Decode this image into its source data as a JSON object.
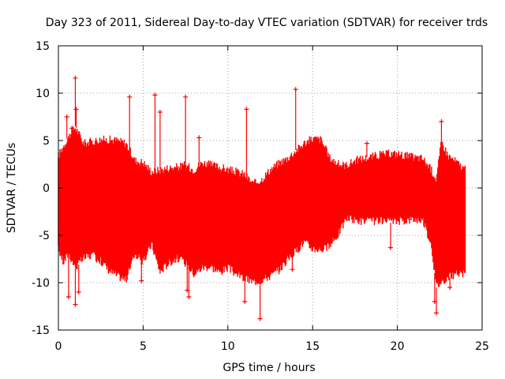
{
  "chart_data": {
    "type": "scatter",
    "title": "Day 323 of 2011, Sidereal Day-to-day VTEC variation (SDTVAR) for receiver trds",
    "xlabel": "GPS time / hours",
    "ylabel": "SDTVAR / TECUs",
    "xlim": [
      0,
      25
    ],
    "ylim": [
      -15,
      15
    ],
    "xticks": [
      0,
      5,
      10,
      15,
      20,
      25
    ],
    "yticks": [
      -15,
      -10,
      -5,
      0,
      5,
      10,
      15
    ],
    "grid": true,
    "series_color": "#ff0000",
    "marker": "+",
    "series": [
      {
        "name": "SDTVAR",
        "envelope": {
          "x": [
            0.0,
            0.3,
            0.6,
            1.0,
            1.5,
            2.0,
            2.5,
            3.0,
            3.5,
            4.0,
            4.5,
            5.0,
            5.5,
            6.0,
            6.5,
            7.0,
            7.5,
            8.0,
            8.5,
            9.0,
            9.5,
            10.0,
            10.5,
            11.0,
            11.5,
            12.0,
            12.5,
            13.0,
            13.5,
            14.0,
            14.5,
            15.0,
            15.5,
            16.0,
            16.5,
            17.0,
            17.5,
            18.0,
            18.5,
            19.0,
            19.5,
            20.0,
            20.5,
            21.0,
            21.5,
            22.0,
            22.3,
            22.6,
            23.0,
            23.5,
            24.0
          ],
          "upper": [
            3.5,
            4.5,
            5.5,
            6.5,
            4.8,
            5.0,
            5.2,
            5.2,
            5.1,
            4.8,
            3.0,
            2.8,
            1.8,
            2.0,
            2.2,
            2.3,
            2.5,
            2.0,
            2.8,
            2.5,
            2.3,
            2.0,
            1.8,
            1.5,
            0.5,
            1.0,
            2.0,
            2.7,
            3.2,
            4.0,
            4.8,
            5.3,
            5.2,
            3.3,
            2.6,
            2.5,
            3.0,
            3.2,
            3.4,
            3.6,
            3.7,
            3.7,
            3.5,
            3.3,
            3.2,
            2.0,
            1.0,
            5.0,
            3.5,
            2.8,
            2.0
          ],
          "lower": [
            -6.5,
            -8.0,
            -7.0,
            -8.5,
            -7.5,
            -7.2,
            -7.8,
            -8.8,
            -9.4,
            -9.8,
            -7.0,
            -8.0,
            -6.0,
            -9.0,
            -8.0,
            -7.5,
            -8.0,
            -9.2,
            -8.5,
            -8.4,
            -9.0,
            -8.5,
            -9.2,
            -9.7,
            -10.0,
            -9.8,
            -9.4,
            -8.8,
            -7.7,
            -6.8,
            -5.8,
            -6.5,
            -6.6,
            -6.3,
            -5.0,
            -3.3,
            -3.5,
            -3.6,
            -3.6,
            -3.6,
            -3.7,
            -3.6,
            -3.5,
            -3.4,
            -3.5,
            -6.0,
            -10.5,
            -10.0,
            -9.5,
            -9.2,
            -9.2
          ]
        },
        "spikes": [
          {
            "x": 0.5,
            "y": 7.5
          },
          {
            "x": 0.8,
            "y": 6.3
          },
          {
            "x": 1.0,
            "y": 11.6
          },
          {
            "x": 1.05,
            "y": 8.3
          },
          {
            "x": 4.2,
            "y": 9.6
          },
          {
            "x": 5.7,
            "y": 9.8
          },
          {
            "x": 6.0,
            "y": 8.0
          },
          {
            "x": 7.5,
            "y": 9.6
          },
          {
            "x": 8.3,
            "y": 5.3
          },
          {
            "x": 11.1,
            "y": 8.3
          },
          {
            "x": 14.0,
            "y": 10.4
          },
          {
            "x": 22.6,
            "y": 7.0
          },
          {
            "x": 0.6,
            "y": -11.5
          },
          {
            "x": 1.0,
            "y": -12.3
          },
          {
            "x": 1.2,
            "y": -11.0
          },
          {
            "x": 11.0,
            "y": -12.0
          },
          {
            "x": 11.9,
            "y": -13.8
          },
          {
            "x": 22.3,
            "y": -13.2
          },
          {
            "x": 22.2,
            "y": -12.0
          },
          {
            "x": 7.7,
            "y": -11.5
          },
          {
            "x": 23.1,
            "y": -10.5
          },
          {
            "x": 4.9,
            "y": -9.8
          },
          {
            "x": 7.6,
            "y": -10.8
          },
          {
            "x": 13.8,
            "y": -8.6
          },
          {
            "x": 19.6,
            "y": -6.3
          },
          {
            "x": 18.2,
            "y": 4.7
          }
        ]
      }
    ]
  }
}
